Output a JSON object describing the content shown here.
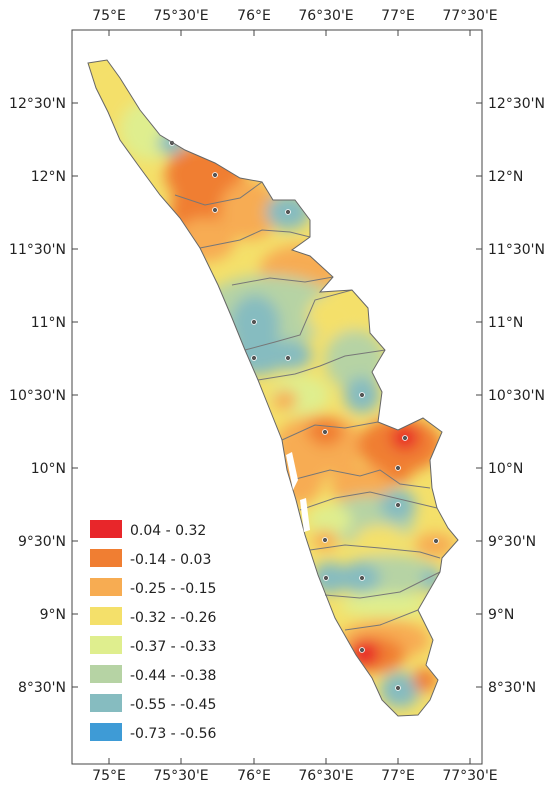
{
  "map": {
    "longitude_ticks": [
      "75°E",
      "75°30'E",
      "76°E",
      "76°30'E",
      "77°E",
      "77°30'E"
    ],
    "latitude_ticks": [
      "12°30'N",
      "12°N",
      "11°30'N",
      "11°N",
      "10°30'N",
      "10°N",
      "9°30'N",
      "9°N",
      "8°30'N"
    ],
    "legend": [
      {
        "label": "0.04 - 0.32",
        "color": "#e8262a"
      },
      {
        "label": "-0.14 - 0.03",
        "color": "#f07e32"
      },
      {
        "label": "-0.25 - -0.15",
        "color": "#f7ac52"
      },
      {
        "label": "-0.32 - -0.26",
        "color": "#f4e06a"
      },
      {
        "label": "-0.37 - -0.33",
        "color": "#dfee8e"
      },
      {
        "label": "-0.44 - -0.38",
        "color": "#b6d3a4"
      },
      {
        "label": "-0.55 - -0.45",
        "color": "#86bcc0"
      },
      {
        "label": "-0.73 - -0.56",
        "color": "#3e9bd6"
      }
    ]
  }
}
